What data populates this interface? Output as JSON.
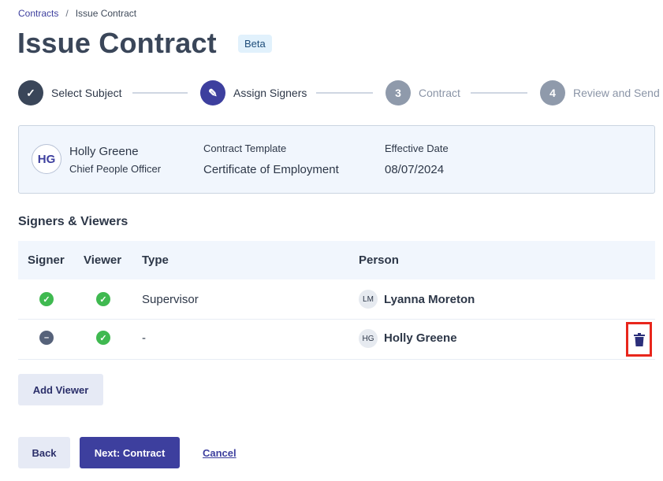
{
  "breadcrumb": {
    "parent": "Contracts",
    "separator": "/",
    "current": "Issue Contract"
  },
  "page": {
    "title": "Issue Contract",
    "badge": "Beta"
  },
  "steps": [
    {
      "label": "Select Subject",
      "state": "done"
    },
    {
      "label": "Assign Signers",
      "state": "active"
    },
    {
      "number": "3",
      "label": "Contract",
      "state": "pending"
    },
    {
      "number": "4",
      "label": "Review and Send",
      "state": "pending"
    }
  ],
  "summary": {
    "initials": "HG",
    "name": "Holly Greene",
    "role": "Chief People Officer",
    "template_label": "Contract Template",
    "template_value": "Certificate of Employment",
    "date_label": "Effective Date",
    "date_value": "08/07/2024"
  },
  "signers": {
    "heading": "Signers & Viewers",
    "columns": [
      "Signer",
      "Viewer",
      "Type",
      "Person"
    ],
    "rows": [
      {
        "signer": "check",
        "viewer": "check",
        "type": "Supervisor",
        "initials": "LM",
        "person": "Lyanna Moreton"
      },
      {
        "signer": "minus",
        "viewer": "check",
        "type": "-",
        "initials": "HG",
        "person": "Holly Greene",
        "delete": true
      }
    ]
  },
  "buttons": {
    "add_viewer": "Add Viewer",
    "back": "Back",
    "next": "Next: Contract",
    "cancel": "Cancel"
  },
  "colors": {
    "primary": "#3d3f9e",
    "success": "#3fb950",
    "dark": "#3a4659",
    "highlight": "#e8261c"
  }
}
